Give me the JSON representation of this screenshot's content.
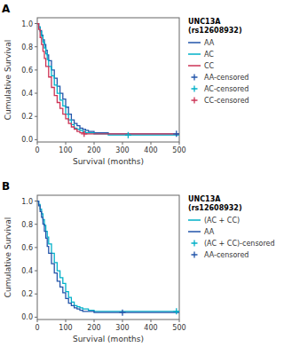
{
  "chart_data": [
    {
      "type": "step",
      "title": "UNC13A\n(rs12608932)",
      "x_label": "Survival (months)",
      "y_label": "Cumulative Survival",
      "annotations": [
        "A"
      ],
      "xlim": [
        0,
        500
      ],
      "ylim": [
        -0.02,
        1.05
      ],
      "xticks": [
        0,
        100,
        200,
        300,
        400,
        500
      ],
      "yticks": [
        {
          "value": 0,
          "label": "0.0"
        },
        0.2,
        0.4,
        0.6,
        0.8,
        {
          "value": 1,
          "label": "1.0"
        }
      ],
      "grid": false,
      "legend": "right",
      "series": [
        {
          "name": "AA",
          "type": "step",
          "color": "#2255aa",
          "x": [
            0,
            5,
            10,
            15,
            20,
            25,
            30,
            35,
            40,
            50,
            60,
            70,
            80,
            90,
            100,
            110,
            120,
            130,
            140,
            150,
            160,
            170,
            180,
            200,
            220,
            250,
            280,
            320,
            350,
            400,
            450,
            490,
            500
          ],
          "values": [
            1.0,
            0.97,
            0.94,
            0.9,
            0.86,
            0.82,
            0.77,
            0.73,
            0.68,
            0.6,
            0.53,
            0.46,
            0.4,
            0.35,
            0.28,
            0.22,
            0.17,
            0.14,
            0.12,
            0.1,
            0.09,
            0.08,
            0.07,
            0.06,
            0.06,
            0.05,
            0.05,
            0.05,
            0.05,
            0.05,
            0.05,
            0.05,
            0.05
          ]
        },
        {
          "name": "AC",
          "type": "step",
          "color": "#00b0c8",
          "x": [
            0,
            5,
            10,
            15,
            20,
            25,
            30,
            35,
            40,
            50,
            60,
            70,
            80,
            90,
            100,
            110,
            120,
            130,
            140,
            150,
            160,
            170,
            180,
            200,
            220,
            250,
            280,
            320,
            500
          ],
          "values": [
            1.0,
            0.97,
            0.93,
            0.89,
            0.84,
            0.79,
            0.74,
            0.69,
            0.63,
            0.55,
            0.47,
            0.4,
            0.34,
            0.29,
            0.22,
            0.17,
            0.13,
            0.1,
            0.09,
            0.08,
            0.07,
            0.06,
            0.06,
            0.05,
            0.05,
            0.04,
            0.04,
            0.04,
            0.04
          ]
        },
        {
          "name": "CC",
          "type": "step",
          "color": "#cc3355",
          "x": [
            0,
            5,
            10,
            15,
            20,
            25,
            30,
            40,
            50,
            60,
            70,
            80,
            90,
            100,
            110,
            120,
            130,
            140,
            150,
            165,
            500
          ],
          "values": [
            1.0,
            0.95,
            0.88,
            0.82,
            0.76,
            0.7,
            0.63,
            0.54,
            0.45,
            0.38,
            0.32,
            0.27,
            0.22,
            0.18,
            0.14,
            0.11,
            0.09,
            0.07,
            0.06,
            0.05,
            0.05
          ]
        },
        {
          "name": "AA-censored",
          "type": "scatter",
          "marker": "plus",
          "color": "#2255aa",
          "x": [
            490
          ],
          "values": [
            0.05
          ]
        },
        {
          "name": "AC-censored",
          "type": "scatter",
          "marker": "plus",
          "color": "#00b0c8",
          "x": [
            320
          ],
          "values": [
            0.04
          ]
        },
        {
          "name": "CC-censored",
          "type": "scatter",
          "marker": "plus",
          "color": "#cc3355",
          "x": [
            165
          ],
          "values": [
            0.05
          ]
        }
      ]
    },
    {
      "type": "step",
      "title": "UNC13A\n(rs12608932)",
      "x_label": "Survival (months)",
      "y_label": "Cumulative Survival",
      "annotations": [
        "B"
      ],
      "xlim": [
        0,
        500
      ],
      "ylim": [
        -0.02,
        1.05
      ],
      "xticks": [
        0,
        100,
        200,
        300,
        400,
        500
      ],
      "yticks": [
        {
          "value": 0,
          "label": "0.0"
        },
        0.2,
        0.4,
        0.6,
        0.8,
        {
          "value": 1,
          "label": "1.0"
        }
      ],
      "grid": false,
      "legend": "right",
      "series": [
        {
          "name": "(AC + CC)",
          "type": "step",
          "color": "#00b0c8",
          "x": [
            0,
            5,
            10,
            15,
            20,
            25,
            30,
            35,
            40,
            50,
            60,
            70,
            80,
            90,
            100,
            110,
            120,
            130,
            140,
            150,
            160,
            180,
            200,
            250,
            300,
            320,
            350,
            400,
            450,
            490,
            500
          ],
          "values": [
            1.0,
            0.97,
            0.93,
            0.89,
            0.84,
            0.79,
            0.74,
            0.69,
            0.63,
            0.55,
            0.47,
            0.4,
            0.34,
            0.29,
            0.22,
            0.17,
            0.13,
            0.1,
            0.09,
            0.08,
            0.07,
            0.06,
            0.05,
            0.05,
            0.05,
            0.05,
            0.05,
            0.05,
            0.05,
            0.05,
            0.05
          ]
        },
        {
          "name": "AA",
          "type": "step",
          "color": "#2255aa",
          "x": [
            0,
            5,
            10,
            15,
            20,
            25,
            30,
            35,
            40,
            50,
            60,
            70,
            80,
            90,
            100,
            110,
            120,
            130,
            140,
            150,
            160,
            170,
            200,
            250,
            300,
            500
          ],
          "values": [
            1.0,
            0.96,
            0.91,
            0.86,
            0.8,
            0.74,
            0.68,
            0.61,
            0.55,
            0.46,
            0.38,
            0.31,
            0.26,
            0.21,
            0.16,
            0.12,
            0.1,
            0.08,
            0.07,
            0.06,
            0.05,
            0.05,
            0.04,
            0.04,
            0.04,
            0.04
          ]
        },
        {
          "name": "(AC + CC)-censored",
          "type": "scatter",
          "marker": "plus",
          "color": "#00b0c8",
          "x": [
            490
          ],
          "values": [
            0.05
          ]
        },
        {
          "name": "AA-censored",
          "type": "scatter",
          "marker": "plus",
          "color": "#2255aa",
          "x": [
            300
          ],
          "values": [
            0.04
          ]
        }
      ]
    }
  ]
}
